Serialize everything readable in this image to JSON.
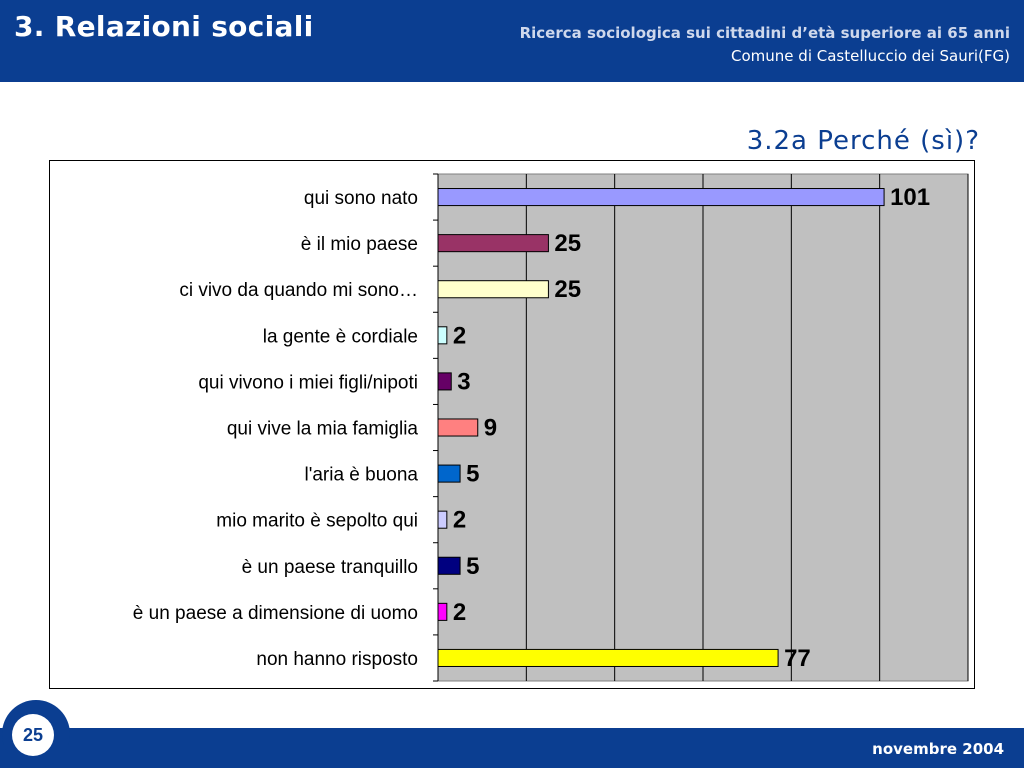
{
  "header": {
    "title": "3. Relazioni sociali",
    "subtitle_line1": "Ricerca sociologica sui cittadini d’età superiore ai 65 anni",
    "subtitle_line2": "Comune di Castelluccio dei Sauri(FG)"
  },
  "slide_title": "3.2a  Perché (sì)?",
  "footer": {
    "page_number": "25",
    "date": "novembre 2004"
  },
  "colors": {
    "brand_blue": "#0b3e91",
    "plot_background": "#c0c0c0"
  },
  "chart_data": {
    "type": "bar",
    "orientation": "horizontal",
    "categories": [
      "qui sono nato",
      "è il mio paese",
      "ci vivo da quando mi sono…",
      "la gente è cordiale",
      "qui vivono i miei figli/nipoti",
      "qui vive la mia famiglia",
      "l'aria è buona",
      "mio marito è sepolto qui",
      "è un paese tranquillo",
      "è un paese a dimensione di uomo",
      "non hanno risposto"
    ],
    "values": [
      101,
      25,
      25,
      2,
      3,
      9,
      5,
      2,
      5,
      2,
      77
    ],
    "data_labels": [
      "101",
      "25",
      "25",
      "2",
      "3",
      "9",
      "5",
      "2",
      "5",
      "2",
      "77"
    ],
    "bar_colors": [
      "#9999ff",
      "#993366",
      "#ffffcc",
      "#ccffff",
      "#660066",
      "#ff8080",
      "#0066cc",
      "#ccccff",
      "#000080",
      "#ff00ff",
      "#ffff00"
    ],
    "xlim": [
      0,
      120
    ],
    "x_grid_step": 20,
    "grid": true,
    "legend": "none",
    "title": "",
    "xlabel": "",
    "ylabel": ""
  }
}
